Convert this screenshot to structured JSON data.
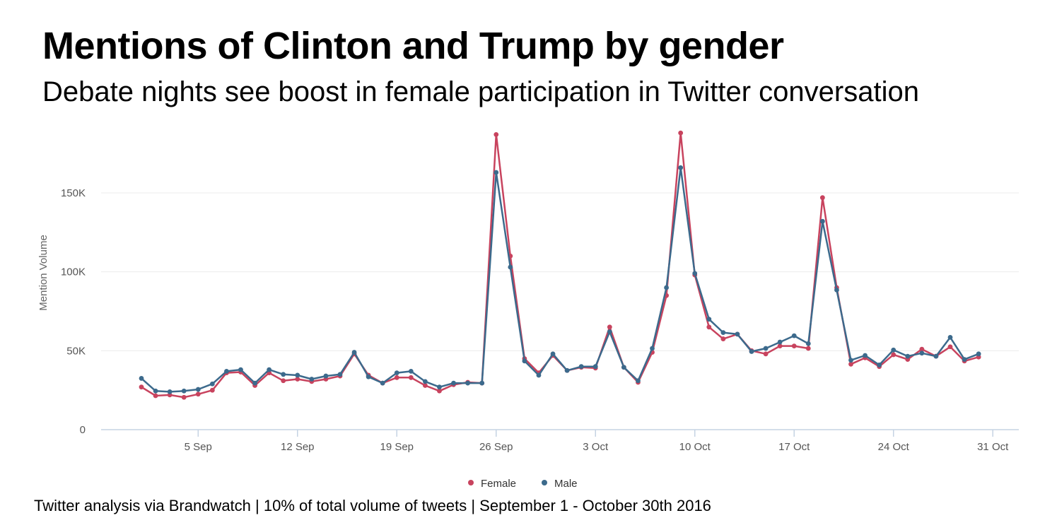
{
  "chart_data": {
    "type": "line",
    "title": "Mentions of Clinton and Trump by gender",
    "subtitle": "Debate nights see boost in female participation in Twitter conversation",
    "footer": "Twitter analysis via Brandwatch | 10% of total volume of tweets | September 1 - October 30th 2016",
    "xlabel": "",
    "ylabel": "Mention Volume",
    "ylim": [
      0,
      190000
    ],
    "y_ticks": [
      {
        "value": 0,
        "label": "0"
      },
      {
        "value": 50000,
        "label": "50K"
      },
      {
        "value": 100000,
        "label": "100K"
      },
      {
        "value": 150000,
        "label": "150K"
      }
    ],
    "x_ticks": [
      {
        "day": 5,
        "label": "5 Sep"
      },
      {
        "day": 12,
        "label": "12 Sep"
      },
      {
        "day": 19,
        "label": "19 Sep"
      },
      {
        "day": 26,
        "label": "26 Sep"
      },
      {
        "day": 33,
        "label": "3 Oct"
      },
      {
        "day": 40,
        "label": "10 Oct"
      },
      {
        "day": 47,
        "label": "17 Oct"
      },
      {
        "day": 54,
        "label": "24 Oct"
      },
      {
        "day": 61,
        "label": "31 Oct"
      }
    ],
    "x_dates": [
      "Sep 1",
      "Sep 2",
      "Sep 3",
      "Sep 4",
      "Sep 5",
      "Sep 6",
      "Sep 7",
      "Sep 8",
      "Sep 9",
      "Sep 10",
      "Sep 11",
      "Sep 12",
      "Sep 13",
      "Sep 14",
      "Sep 15",
      "Sep 16",
      "Sep 17",
      "Sep 18",
      "Sep 19",
      "Sep 20",
      "Sep 21",
      "Sep 22",
      "Sep 23",
      "Sep 24",
      "Sep 25",
      "Sep 26",
      "Sep 27",
      "Sep 28",
      "Sep 29",
      "Sep 30",
      "Oct 1",
      "Oct 2",
      "Oct 3",
      "Oct 4",
      "Oct 5",
      "Oct 6",
      "Oct 7",
      "Oct 8",
      "Oct 9",
      "Oct 10",
      "Oct 11",
      "Oct 12",
      "Oct 13",
      "Oct 14",
      "Oct 15",
      "Oct 16",
      "Oct 17",
      "Oct 18",
      "Oct 19",
      "Oct 20",
      "Oct 21",
      "Oct 22",
      "Oct 23",
      "Oct 24",
      "Oct 25",
      "Oct 26",
      "Oct 27",
      "Oct 28",
      "Oct 29",
      "Oct 30"
    ],
    "grid": true,
    "legend": "bottom-center",
    "series": [
      {
        "name": "Female",
        "color": "#c8435e",
        "values": [
          27000,
          21500,
          22000,
          20500,
          22500,
          25000,
          36000,
          36500,
          28000,
          36000,
          31000,
          32000,
          30500,
          32000,
          34000,
          48000,
          34500,
          29500,
          33000,
          33000,
          28000,
          24500,
          28500,
          30000,
          29500,
          187000,
          110000,
          45000,
          36000,
          47000,
          37500,
          39500,
          39000,
          65000,
          39500,
          30000,
          49000,
          85000,
          188000,
          98000,
          65000,
          57500,
          60500,
          50000,
          48000,
          53000,
          53000,
          51500,
          147000,
          90000,
          41500,
          45500,
          40000,
          47500,
          44500,
          51000,
          46500,
          52500,
          43500,
          46000
        ]
      },
      {
        "name": "Male",
        "color": "#3c6a8c",
        "values": [
          32500,
          24500,
          24000,
          24500,
          25500,
          29000,
          37000,
          38000,
          29500,
          38000,
          35000,
          34500,
          32000,
          34000,
          35000,
          49000,
          33500,
          29500,
          36000,
          37000,
          30500,
          27000,
          29500,
          29500,
          29500,
          163000,
          103000,
          43500,
          34500,
          48000,
          37500,
          40000,
          40000,
          62000,
          39500,
          31000,
          51500,
          90000,
          166000,
          99000,
          70000,
          61500,
          60500,
          49500,
          51500,
          55500,
          59500,
          54500,
          132000,
          88500,
          44000,
          47000,
          41000,
          50500,
          46500,
          48500,
          46500,
          58500,
          44500,
          48000
        ]
      }
    ]
  }
}
